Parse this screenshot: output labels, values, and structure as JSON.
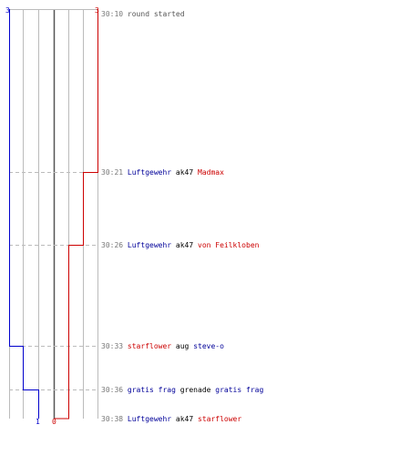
{
  "colors": {
    "team_blue": "#0000cc",
    "team_red": "#cc0000",
    "grid": "#bbbbbb",
    "center": "#555555",
    "dash": "#bbbbbb"
  },
  "counts": {
    "blue_start": "3",
    "red_start": "3",
    "blue_end": "1",
    "red_end": "0"
  },
  "events": [
    {
      "time": "30:10",
      "message": "round started"
    },
    {
      "time": "30:21",
      "killer": "Luftgewehr",
      "weapon": "ak47",
      "victim": "Madmax"
    },
    {
      "time": "30:26",
      "killer": "Luftgewehr",
      "weapon": "ak47",
      "victim": "von Feilkloben"
    },
    {
      "time": "30:33",
      "killer": "starflower",
      "weapon": "aug",
      "victim": "steve-o"
    },
    {
      "time": "30:36",
      "killer": "gratis frag",
      "weapon": "grenade",
      "victim": "gratis frag"
    },
    {
      "time": "30:38",
      "killer": "Luftgewehr",
      "weapon": "ak47",
      "victim": "starflower"
    }
  ]
}
